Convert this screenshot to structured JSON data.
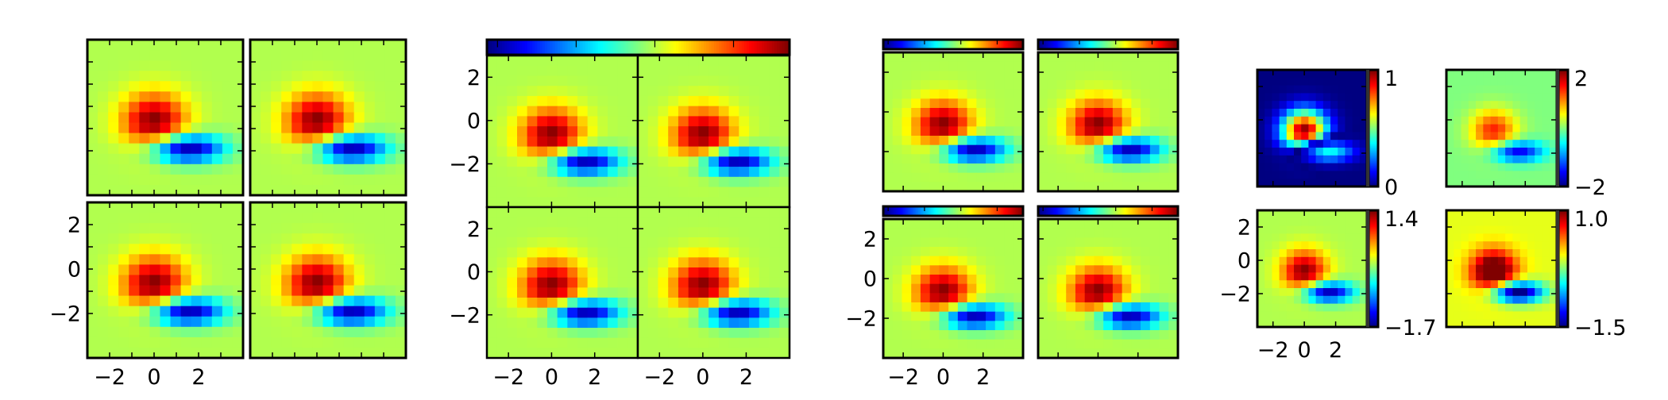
{
  "chart_data": {
    "type": "heatmap",
    "title": "",
    "colormap": "jet",
    "image_extent": {
      "xlim": [
        -3,
        4
      ],
      "ylim": [
        -4,
        3
      ]
    },
    "image_shape": [
      15,
      15
    ],
    "image_model": {
      "description": "difference of two gaussian blobs",
      "positive_blob": {
        "center": [
          0.0,
          -0.7
        ],
        "sigma": [
          1.0,
          0.9
        ],
        "amplitude": 1.4
      },
      "negative_blob": {
        "center": [
          1.4,
          -1.9
        ],
        "sigma": [
          1.2,
          0.45
        ],
        "amplitude": -1.7
      }
    },
    "xticklabels": [
      "−2",
      "0",
      "2"
    ],
    "yticklabels": [
      "2",
      "0",
      "−2"
    ],
    "groups": [
      {
        "name": "grid-no-colorbar",
        "panels": 4,
        "vmin": -1.7,
        "vmax": 1.4
      },
      {
        "name": "grid-single-colorbar",
        "panels": 4,
        "vmin": -1.7,
        "vmax": 1.4,
        "colorbar": "top"
      },
      {
        "name": "grid-each-colorbar",
        "panels": 4,
        "vmin": -1.7,
        "vmax": 1.4,
        "colorbar": "top-each"
      },
      {
        "name": "grid-each-colorbar-right",
        "panels": [
          {
            "mode": "positive",
            "vmin": 0,
            "vmax": 1,
            "cbar_labels": [
              "1",
              "0"
            ]
          },
          {
            "mode": "value",
            "vmin": -2,
            "vmax": 2,
            "cbar_labels": [
              "2",
              "−2"
            ]
          },
          {
            "mode": "value",
            "vmin": -1.7,
            "vmax": 1.4,
            "cbar_labels": [
              "1.4",
              "−1.7"
            ]
          },
          {
            "mode": "value",
            "vmin": -1.5,
            "vmax": 1.0,
            "cbar_labels": [
              "1.0",
              "−1.5"
            ]
          }
        ]
      }
    ]
  }
}
